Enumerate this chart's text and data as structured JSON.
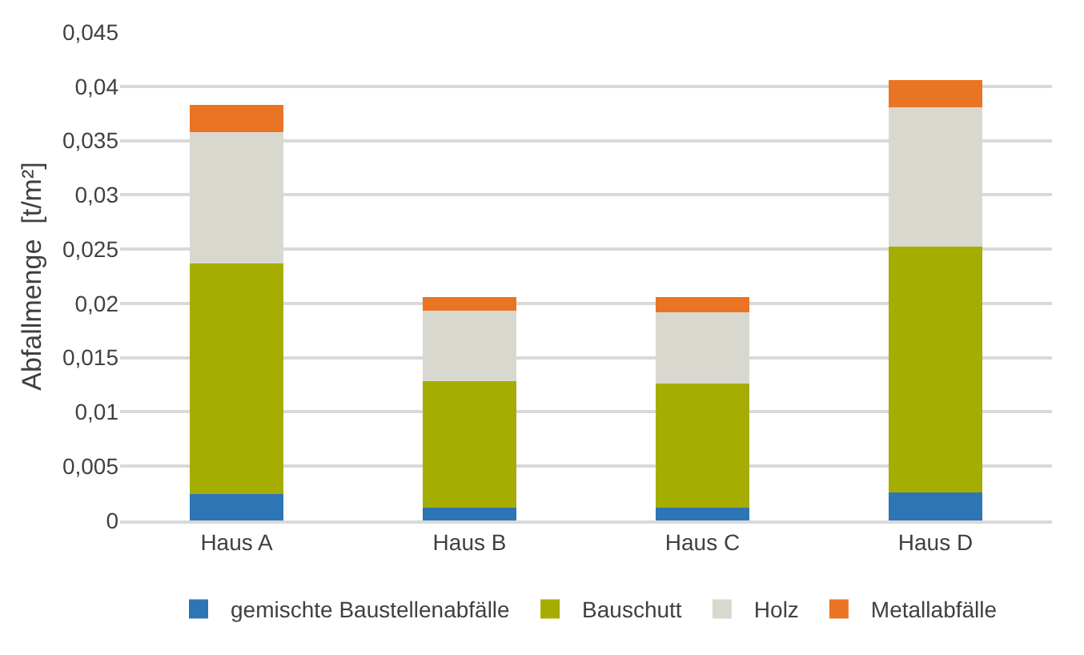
{
  "chart_data": {
    "type": "bar",
    "stacked": true,
    "ylabel": "Abfallmenge  [t/m²]",
    "categories": [
      "Haus A",
      "Haus B",
      "Haus C",
      "Haus D"
    ],
    "series": [
      {
        "name": "gemischte Baustellenabfälle",
        "color": "#2e75b6",
        "values": [
          0.0024,
          0.0012,
          0.0012,
          0.0026
        ]
      },
      {
        "name": "Bauschutt",
        "color": "#a5ad00",
        "values": [
          0.0213,
          0.0116,
          0.0114,
          0.0226
        ]
      },
      {
        "name": "Holz",
        "color": "#d9d8cf",
        "values": [
          0.0121,
          0.0065,
          0.0066,
          0.0129
        ]
      },
      {
        "name": "Metallabfälle",
        "color": "#e97424",
        "values": [
          0.0025,
          0.0013,
          0.0014,
          0.0025
        ]
      }
    ],
    "ylim": [
      0,
      0.045
    ],
    "yticks": [
      {
        "value": 0,
        "label": "0"
      },
      {
        "value": 0.005,
        "label": "0,005"
      },
      {
        "value": 0.01,
        "label": "0,01"
      },
      {
        "value": 0.015,
        "label": "0,015"
      },
      {
        "value": 0.02,
        "label": "0,02"
      },
      {
        "value": 0.025,
        "label": "0,025"
      },
      {
        "value": 0.03,
        "label": "0,03"
      },
      {
        "value": 0.035,
        "label": "0,035"
      },
      {
        "value": 0.04,
        "label": "0,04"
      },
      {
        "value": 0.045,
        "label": "0,045"
      }
    ],
    "grid": "y",
    "legend": "bottom"
  }
}
